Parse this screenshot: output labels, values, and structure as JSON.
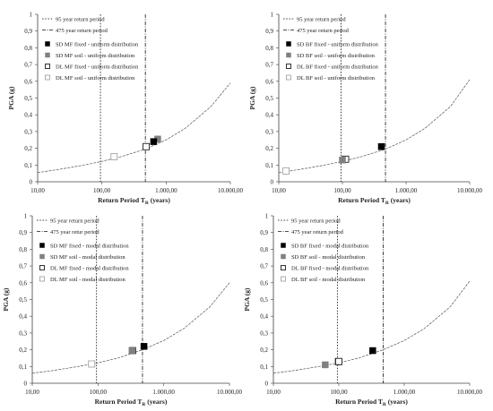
{
  "chart_data": [
    {
      "type": "line",
      "xlabel": "Return Period T_R (years)",
      "xlabel_main": "Return Period T",
      "xlabel_sub": "R",
      "xlabel_tail": " (years)",
      "ylabel": "PGA (g)",
      "xscale": "log",
      "xlim": [
        10,
        10000
      ],
      "ylim": [
        0,
        1
      ],
      "x_ticks": [
        "10,00",
        "100,00",
        "1.000,00",
        "10.000,00"
      ],
      "y_ticks": [
        "0",
        "0,1",
        "0,2",
        "0,3",
        "0,4",
        "0,5",
        "0,6",
        "0,7",
        "0,8",
        "0,9",
        "1"
      ],
      "grid": false,
      "legend_position": "top-left",
      "vlines": [
        {
          "name": "95 year return period",
          "x": 95,
          "style": "dotted"
        },
        {
          "name": "475 year return period",
          "x": 475,
          "style": "dashdot"
        }
      ],
      "curve": {
        "x": [
          10,
          20,
          50,
          95,
          200,
          475,
          1000,
          2000,
          5000,
          10000
        ],
        "y": [
          0.055,
          0.072,
          0.098,
          0.12,
          0.15,
          0.195,
          0.25,
          0.32,
          0.45,
          0.59
        ]
      },
      "series": [
        {
          "name": "SD MF fixed - uniform distribution",
          "marker": "filled-black",
          "x": [
            640
          ],
          "y": [
            0.24
          ]
        },
        {
          "name": "SD MF soil - uniform distribution",
          "marker": "filled-grey",
          "x": [
            740
          ],
          "y": [
            0.255
          ]
        },
        {
          "name": "DL MF fixed - uniform distribution",
          "marker": "open-black",
          "x": [
            490
          ],
          "y": [
            0.21
          ]
        },
        {
          "name": "DL MF soil - uniform distribution",
          "marker": "open-grey",
          "x": [
            155
          ],
          "y": [
            0.15
          ]
        }
      ]
    },
    {
      "type": "line",
      "xlabel": "Return Period T_R (years)",
      "xlabel_main": "Return Period T",
      "xlabel_sub": "R",
      "xlabel_tail": " (years)",
      "ylabel": "PGA (g)",
      "xscale": "log",
      "xlim": [
        10,
        10000
      ],
      "ylim": [
        0,
        1
      ],
      "x_ticks": [
        "10,00",
        "100,00",
        "1.000,00",
        "10.000,00"
      ],
      "y_ticks": [
        "0",
        "0,1",
        "0,2",
        "0,3",
        "0,4",
        "0,5",
        "0,6",
        "0,7",
        "0,8",
        "0,9",
        "1"
      ],
      "grid": false,
      "legend_position": "top-left",
      "vlines": [
        {
          "name": "95 year return period",
          "x": 95,
          "style": "dotted"
        },
        {
          "name": "475 year return period",
          "x": 475,
          "style": "dashdot"
        }
      ],
      "curve": {
        "x": [
          10,
          20,
          50,
          95,
          200,
          475,
          1000,
          2000,
          5000,
          10000
        ],
        "y": [
          0.055,
          0.072,
          0.098,
          0.12,
          0.15,
          0.195,
          0.25,
          0.32,
          0.45,
          0.61
        ]
      },
      "series": [
        {
          "name": "SD BF fixed - uniform distribution",
          "marker": "filled-black",
          "x": [
            410
          ],
          "y": [
            0.21
          ]
        },
        {
          "name": "SD BF soil - uniform distribution",
          "marker": "filled-grey",
          "x": [
            100
          ],
          "y": [
            0.13
          ]
        },
        {
          "name": "DL BF fixed - uniform distribution",
          "marker": "open-black",
          "x": [
            112
          ],
          "y": [
            0.135
          ]
        },
        {
          "name": "DL BF soil - uniform distribution",
          "marker": "open-grey",
          "x": [
            13
          ],
          "y": [
            0.065
          ]
        }
      ]
    },
    {
      "type": "line",
      "xlabel": "Return Period T_R (years)",
      "xlabel_main": "Return Period T",
      "xlabel_sub": "R",
      "xlabel_tail": " (years)",
      "ylabel": "PGA (g)",
      "xscale": "log",
      "xlim": [
        10,
        10000
      ],
      "ylim": [
        0,
        1
      ],
      "x_ticks": [
        "10,00",
        "100,00",
        "1.000,00",
        "10.000,00"
      ],
      "y_ticks": [
        "0",
        "0,1",
        "0,2",
        "0,3",
        "0,4",
        "0,5",
        "0,6",
        "0,7",
        "0,8",
        "0,9",
        "1"
      ],
      "grid": false,
      "legend_position": "top-left",
      "vlines": [
        {
          "name": "95 year return period",
          "x": 95,
          "style": "dotted"
        },
        {
          "name": "475 year retur period",
          "x": 475,
          "style": "dashdot"
        }
      ],
      "curve": {
        "x": [
          10,
          20,
          50,
          95,
          200,
          475,
          1000,
          2000,
          5000,
          10000
        ],
        "y": [
          0.06,
          0.075,
          0.1,
          0.12,
          0.15,
          0.2,
          0.255,
          0.325,
          0.455,
          0.6
        ]
      },
      "series": [
        {
          "name": "SD MF fixed - modal distribution",
          "marker": "filled-black",
          "x": [
            500
          ],
          "y": [
            0.22
          ]
        },
        {
          "name": "SD MF soil - modal distribution",
          "marker": "filled-grey",
          "x": [
            330
          ],
          "y": [
            0.195
          ]
        },
        {
          "name": "DL MF fixed - modal distribution",
          "marker": "open-black",
          "x": [
            335
          ],
          "y": [
            0.195
          ]
        },
        {
          "name": "DL MF soil - modal distribution",
          "marker": "open-grey",
          "x": [
            80
          ],
          "y": [
            0.115
          ]
        }
      ]
    },
    {
      "type": "line",
      "xlabel": "Return Period T_R (years)",
      "xlabel_main": "Return Period T",
      "xlabel_sub": "R",
      "xlabel_tail": " (years)",
      "ylabel": "PGA (g)",
      "xscale": "log",
      "xlim": [
        10,
        10000
      ],
      "ylim": [
        0,
        1
      ],
      "x_ticks": [
        "10,00",
        "100,00",
        "1.000,00",
        "10.000,00"
      ],
      "y_ticks": [
        "0",
        "0,1",
        "0,2",
        "0,3",
        "0,4",
        "0,5",
        "0,6",
        "0,7",
        "0,8",
        "0,9",
        "1"
      ],
      "grid": false,
      "legend_position": "top-left",
      "vlines": [
        {
          "name": "95 year return period",
          "x": 95,
          "style": "dotted"
        },
        {
          "name": "475 year return period",
          "x": 475,
          "style": "dashdot"
        }
      ],
      "curve": {
        "x": [
          10,
          20,
          50,
          95,
          200,
          475,
          1000,
          2000,
          5000,
          10000
        ],
        "y": [
          0.06,
          0.075,
          0.1,
          0.12,
          0.15,
          0.2,
          0.255,
          0.325,
          0.455,
          0.61
        ]
      },
      "series": [
        {
          "name": "SD BF fixed - modal distribution",
          "marker": "filled-black",
          "x": [
            330
          ],
          "y": [
            0.195
          ]
        },
        {
          "name": "SD BF soil - modal distribution",
          "marker": "filled-grey",
          "x": [
            62
          ],
          "y": [
            0.11
          ]
        },
        {
          "name": "DL BF fixed - modal distribution",
          "marker": "open-black",
          "x": [
            100
          ],
          "y": [
            0.13
          ]
        },
        {
          "name": "DL BF soil - modal distribution",
          "marker": "open-grey",
          "x": [
            97
          ],
          "y": [
            0.128
          ]
        }
      ]
    }
  ],
  "colors": {
    "axis": "#404040",
    "text": "#222222",
    "curve": "#555555",
    "vline": "#111111",
    "marker_black": "#000000",
    "marker_grey": "#808080",
    "marker_open_grey": "#9a9a9a"
  }
}
